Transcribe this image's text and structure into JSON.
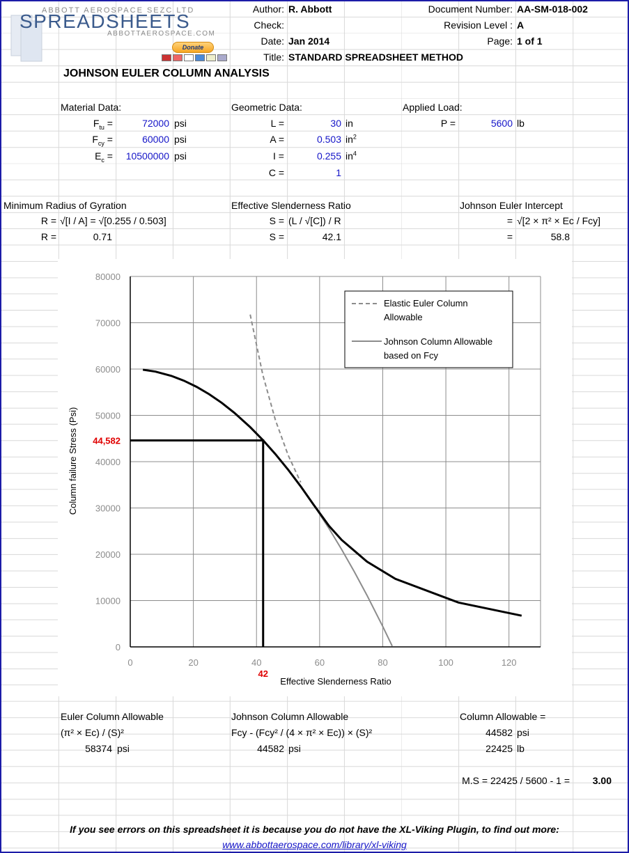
{
  "logo": {
    "company": "ABBOTT AEROSPACE SEZC LTD",
    "product": "SPREADSHEETS",
    "site": "ABBOTTAEROSPACE.COM",
    "donate_label": "Donate"
  },
  "header": {
    "author_label": "Author:",
    "author": "R. Abbott",
    "check_label": "Check:",
    "check": "",
    "date_label": "Date:",
    "date": "Jan 2014",
    "title_label": "Title:",
    "title": "STANDARD SPREADSHEET METHOD",
    "docnum_label": "Document Number:",
    "docnum": "AA-SM-018-002",
    "rev_label": "Revision Level :",
    "rev": "A",
    "page_label": "Page:",
    "page": "1 of 1"
  },
  "sheet_title": "JOHNSON EULER COLUMN ANALYSIS",
  "material": {
    "heading": "Material Data:",
    "ftu": "72000",
    "fcy": "60000",
    "ec": "10500000",
    "unit": "psi"
  },
  "geometry": {
    "heading": "Geometric Data:",
    "L": "30",
    "L_unit": "in",
    "A": "0.503",
    "A_unit": "in",
    "I": "0.255",
    "I_unit": "in",
    "C": "1"
  },
  "load": {
    "heading": "Applied Load:",
    "P": "5600",
    "unit": "lb"
  },
  "radius": {
    "heading": "Minimum Radius of Gyration",
    "label": "R =",
    "formula": "√[I / A] = √[0.255 / 0.503]",
    "value": "0.71"
  },
  "slenderness": {
    "heading": "Effective Slenderness Ratio",
    "label": "S =",
    "formula": "(L / √[C]) / R",
    "value": "42.1"
  },
  "intercept": {
    "heading": "Johnson Euler Intercept",
    "label": "=",
    "formula": "√[2 × π² × Ec / Fcy]",
    "value": "58.8"
  },
  "euler": {
    "heading": "Euler Column Allowable",
    "formula": "(π² × Ec) / (S)²",
    "value": "58374",
    "unit": "psi"
  },
  "johnson": {
    "heading": "Johnson Column Allowable",
    "formula": "Fcy - (Fcy² / (4 × π² × Ec)) × (S)²",
    "value": "44582",
    "unit": "psi"
  },
  "allowable": {
    "heading": "Column Allowable =",
    "stress": "44582",
    "stress_unit": "psi",
    "load": "22425",
    "load_unit": "lb"
  },
  "margin": {
    "label": "M.S = 22425 / 5600 - 1 =",
    "value": "3.00"
  },
  "footer": {
    "notice": "If you see errors on this spreadsheet it is because you do not have the XL-Viking Plugin, to find out more:",
    "link": "www.abbottaerospace.com/library/xl-viking"
  },
  "chart_data": {
    "type": "line",
    "xlabel": "Effective Slenderness Ratio",
    "ylabel": "Column failure Stress (Psi)",
    "xlim": [
      0,
      130
    ],
    "ylim": [
      0,
      80000
    ],
    "xticks": [
      0,
      20,
      40,
      60,
      80,
      100,
      120
    ],
    "yticks": [
      0,
      10000,
      20000,
      30000,
      40000,
      50000,
      60000,
      70000,
      80000
    ],
    "grid": true,
    "legend_position": "top-right",
    "series": [
      {
        "name": "Elastic Euler Column Allowable",
        "style": "dashed",
        "color": "#8c8c8c",
        "x": [
          38,
          42,
          46,
          50,
          54
        ],
        "y": [
          71766,
          58748,
          48976,
          41452,
          35538
        ]
      },
      {
        "name": "Johnson Column Allowable based on Fcy",
        "style": "solid",
        "color": "#8c8c8c",
        "x": [
          58,
          63,
          67,
          71,
          75,
          80,
          83
        ],
        "y": [
          30784,
          25533,
          21016,
          16223,
          11152,
          4424,
          178
        ]
      },
      {
        "name": "Combined",
        "style": "solid-thick",
        "color": "#000000",
        "legend": false,
        "x": [
          4,
          8,
          13,
          17,
          21,
          25,
          29,
          33,
          38,
          42,
          46,
          50,
          54,
          58,
          63,
          67,
          75,
          84,
          104,
          124
        ],
        "y": [
          59861,
          59444,
          58532,
          57490,
          56170,
          54572,
          52696,
          50543,
          47460,
          44680,
          41624,
          38288,
          34675,
          30784,
          26110,
          23085,
          18423,
          14687,
          9581,
          6740
        ]
      }
    ],
    "marker": {
      "x": 42.1,
      "y": 44582,
      "x_label": "42",
      "y_label": "44,582",
      "color": "#e00000"
    }
  }
}
